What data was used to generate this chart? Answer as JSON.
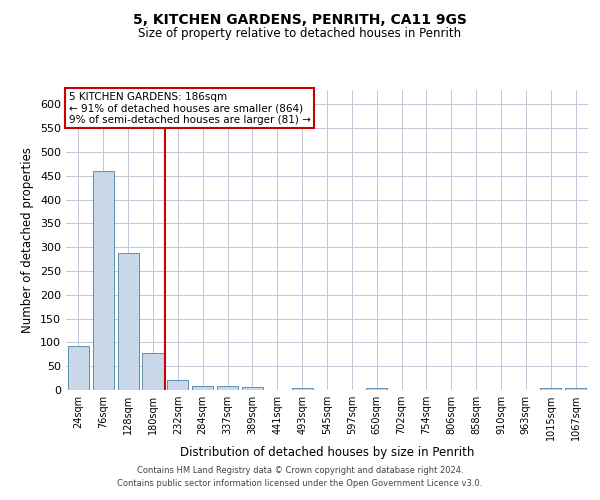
{
  "title1": "5, KITCHEN GARDENS, PENRITH, CA11 9GS",
  "title2": "Size of property relative to detached houses in Penrith",
  "xlabel": "Distribution of detached houses by size in Penrith",
  "ylabel": "Number of detached properties",
  "footer1": "Contains HM Land Registry data © Crown copyright and database right 2024.",
  "footer2": "Contains public sector information licensed under the Open Government Licence v3.0.",
  "annotation_line1": "5 KITCHEN GARDENS: 186sqm",
  "annotation_line2": "← 91% of detached houses are smaller (864)",
  "annotation_line3": "9% of semi-detached houses are larger (81) →",
  "categories": [
    "24sqm",
    "76sqm",
    "128sqm",
    "180sqm",
    "232sqm",
    "284sqm",
    "337sqm",
    "389sqm",
    "441sqm",
    "493sqm",
    "545sqm",
    "597sqm",
    "650sqm",
    "702sqm",
    "754sqm",
    "806sqm",
    "858sqm",
    "910sqm",
    "963sqm",
    "1015sqm",
    "1067sqm"
  ],
  "values": [
    93,
    460,
    287,
    77,
    22,
    9,
    8,
    7,
    0,
    5,
    0,
    0,
    5,
    0,
    0,
    0,
    0,
    0,
    0,
    5,
    5
  ],
  "bar_color": "#c8d8e8",
  "bar_edge_color": "#6090b0",
  "red_line_color": "#cc0000",
  "grid_color": "#c0c8d8",
  "background_color": "#ffffff",
  "annotation_box_color": "#ffffff",
  "annotation_box_edge": "#cc0000",
  "ylim": [
    0,
    630
  ],
  "yticks": [
    0,
    50,
    100,
    150,
    200,
    250,
    300,
    350,
    400,
    450,
    500,
    550,
    600
  ],
  "red_line_x": 3.5,
  "title1_fontsize": 10,
  "title2_fontsize": 8.5,
  "xlabel_fontsize": 8.5,
  "ylabel_fontsize": 8.5,
  "xtick_fontsize": 7,
  "ytick_fontsize": 8,
  "annotation_fontsize": 7.5,
  "footer_fontsize": 6
}
